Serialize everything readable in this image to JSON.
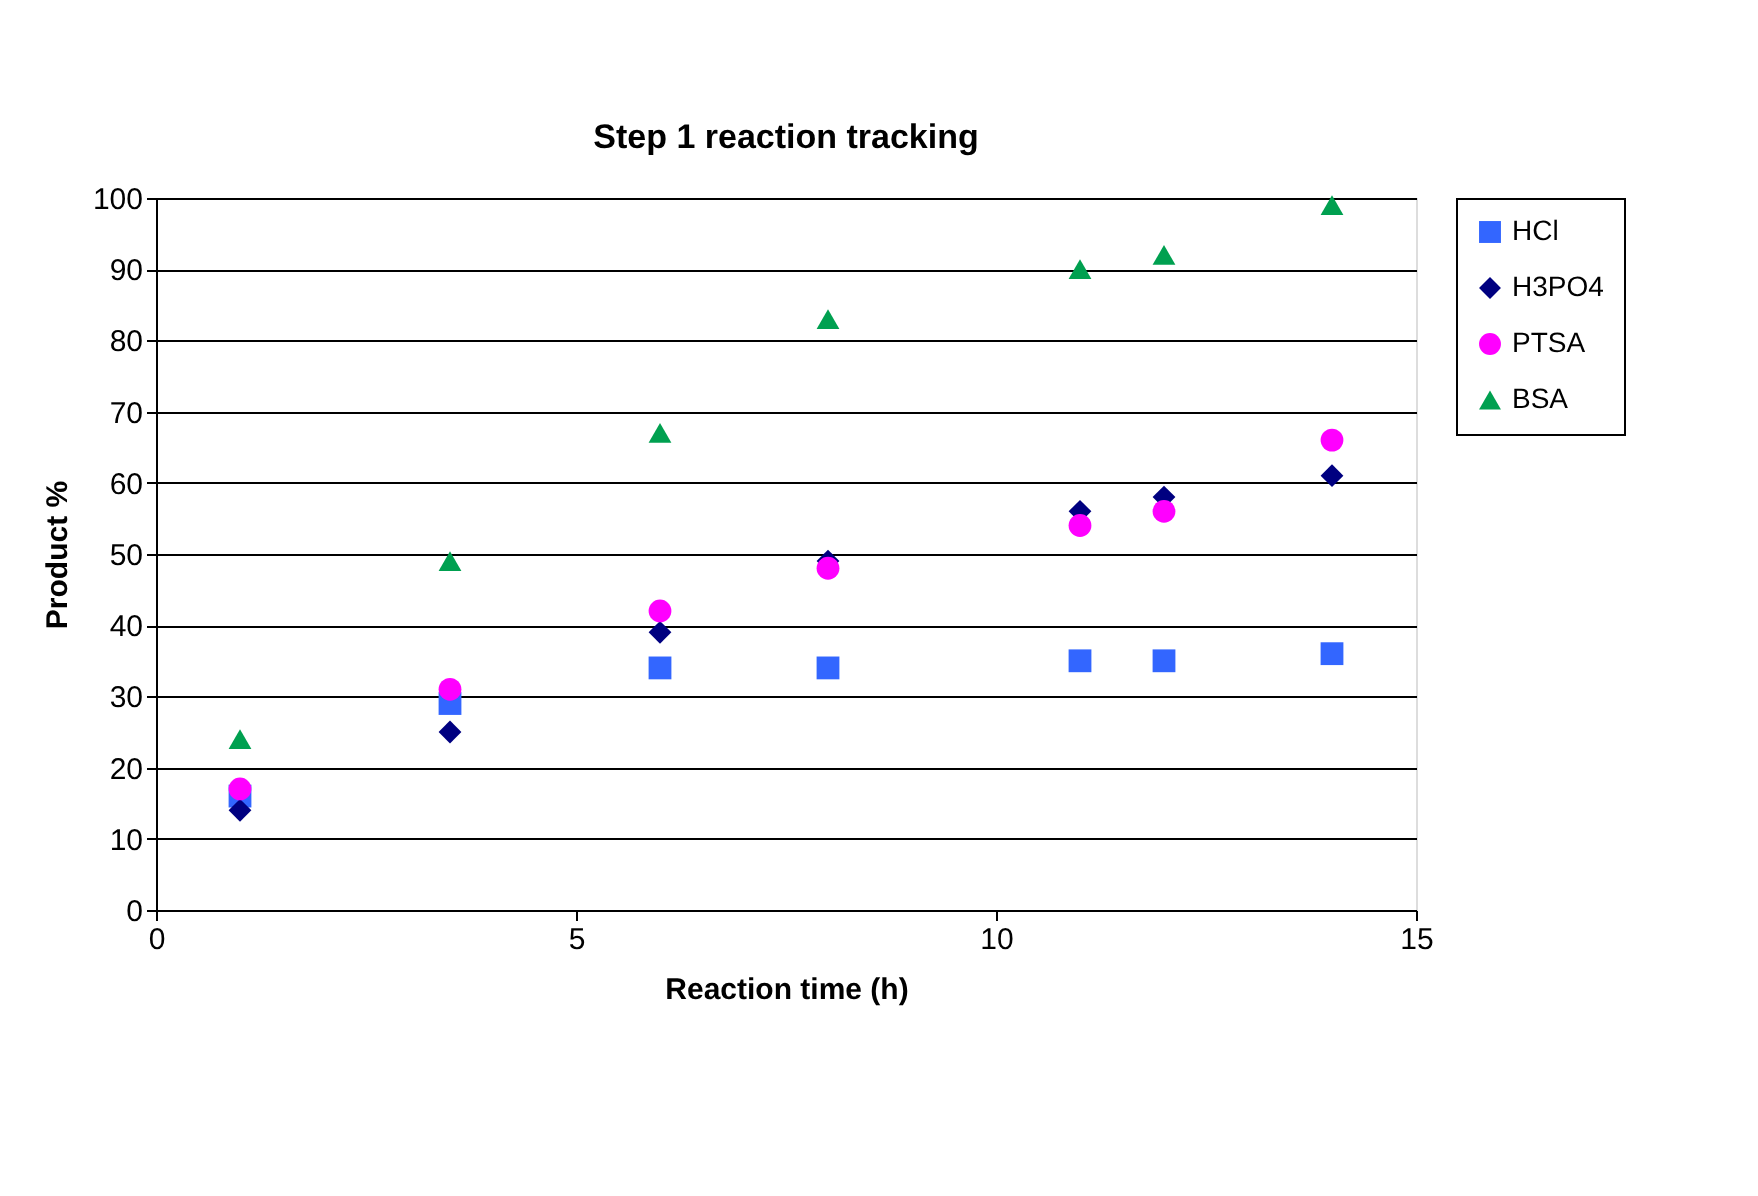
{
  "chart_data": {
    "type": "scatter",
    "title": "Step 1 reaction tracking",
    "xlabel": "Reaction time (h)",
    "ylabel": "Product %",
    "x": [
      1,
      3.5,
      6,
      8,
      11,
      12,
      14
    ],
    "series": [
      {
        "name": "HCl",
        "color": "#3366ff",
        "marker": "square",
        "values": [
          16,
          29,
          34,
          34,
          35,
          35,
          36
        ]
      },
      {
        "name": "H3PO4",
        "color": "#000080",
        "marker": "diamond",
        "values": [
          14,
          25,
          39,
          49,
          56,
          58,
          61
        ]
      },
      {
        "name": "PTSA",
        "color": "#ff00ff",
        "marker": "circle",
        "values": [
          17,
          31,
          42,
          48,
          54,
          56,
          66
        ]
      },
      {
        "name": "BSA",
        "color": "#00a050",
        "marker": "triangle",
        "values": [
          24,
          49,
          67,
          83,
          90,
          92,
          99
        ]
      }
    ],
    "xlim": [
      0,
      15
    ],
    "xticks": [
      0,
      5,
      10,
      15
    ],
    "ylim": [
      0,
      100
    ],
    "yticks": [
      0,
      10,
      20,
      30,
      40,
      50,
      60,
      70,
      80,
      90,
      100
    ],
    "grid": "y",
    "legend": "right"
  }
}
